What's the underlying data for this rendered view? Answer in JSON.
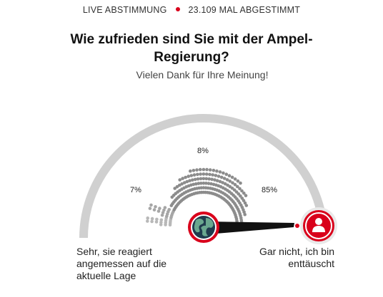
{
  "status": {
    "live_label": "LIVE ABSTIMMUNG",
    "votes_label": "23.109 MAL ABGESTIMMT"
  },
  "poll": {
    "question": "Wie zufrieden sind Sie mit der Ampel-Regierung?",
    "thank_you": "Vielen Dank für Ihre Meinung!",
    "left_label": "Sehr, sie reagiert angemessen auf die aktuelle Lage",
    "right_label": "Gar nicht, ich bin enttäuscht"
  },
  "chart_data": {
    "type": "gauge",
    "categories": [
      "left",
      "middle",
      "right"
    ],
    "values": [
      7,
      8,
      85
    ],
    "labels": [
      "7%",
      "8%",
      "85%"
    ],
    "needle_value": 100
  },
  "colors": {
    "accent": "#d9001b",
    "arc": "#d0d0d0",
    "dots_left": "#b8b8b8",
    "dots_mid": "#a6a6a6",
    "dots_right": "#8c8c8c"
  },
  "icons": {
    "left_knob": "globe-icon",
    "right_knob": "user-icon"
  }
}
